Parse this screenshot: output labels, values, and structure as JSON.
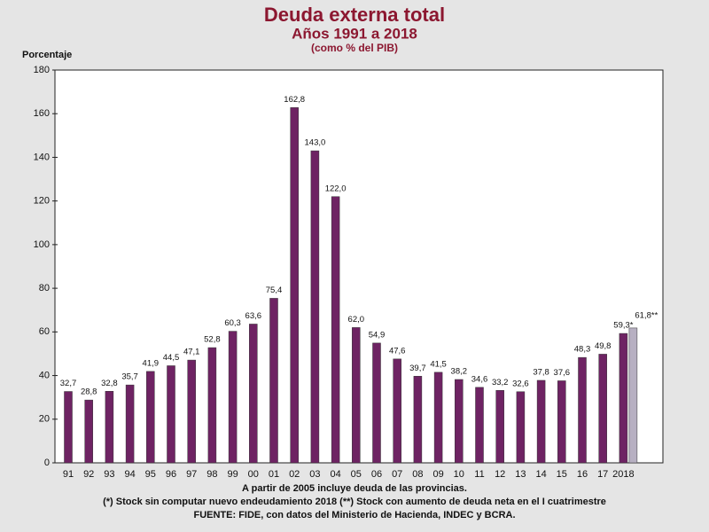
{
  "chart_data": {
    "type": "bar",
    "title": "Deuda externa total",
    "subtitle": "Años 1991 a 2018",
    "subtitle2": "(como % del PIB)",
    "y_label": "Porcentaje",
    "notes": [
      "A partir de 2005 incluye deuda de las provincias.",
      "(*) Stock sin computar nuevo endeudamiento 2018    (**) Stock con aumento de deuda neta en el I cuatrimestre",
      "FUENTE: FIDE, con datos del Ministerio de Hacienda, INDEC y BCRA."
    ],
    "categories": [
      "91",
      "92",
      "93",
      "94",
      "95",
      "96",
      "97",
      "98",
      "99",
      "00",
      "01",
      "02",
      "03",
      "04",
      "05",
      "06",
      "07",
      "08",
      "09",
      "10",
      "11",
      "12",
      "13",
      "14",
      "15",
      "16",
      "17",
      "2018",
      null
    ],
    "values": [
      32.7,
      28.8,
      32.8,
      35.7,
      41.9,
      44.5,
      47.1,
      52.8,
      60.3,
      63.6,
      75.4,
      162.8,
      143.0,
      122.0,
      62.0,
      54.9,
      47.6,
      39.7,
      41.5,
      38.2,
      34.6,
      33.2,
      32.6,
      37.8,
      37.6,
      48.3,
      49.8,
      59.3,
      61.8
    ],
    "value_labels": [
      "32,7",
      "28,8",
      "32,8",
      "35,7",
      "41,9",
      "44,5",
      "47,1",
      "52,8",
      "60,3",
      "63,6",
      "75,4",
      "162,8",
      "143,0",
      "122,0",
      "62,0",
      "54,9",
      "47,6",
      "39,7",
      "41,5",
      "38,2",
      "34,6",
      "33,2",
      "32,6",
      "37,8",
      "37,6",
      "48,3",
      "49,8",
      "59,3*",
      "61,8**"
    ],
    "colors": [
      "#6e2363",
      "#6e2363",
      "#6e2363",
      "#6e2363",
      "#6e2363",
      "#6e2363",
      "#6e2363",
      "#6e2363",
      "#6e2363",
      "#6e2363",
      "#6e2363",
      "#6e2363",
      "#6e2363",
      "#6e2363",
      "#6e2363",
      "#6e2363",
      "#6e2363",
      "#6e2363",
      "#6e2363",
      "#6e2363",
      "#6e2363",
      "#6e2363",
      "#6e2363",
      "#6e2363",
      "#6e2363",
      "#6e2363",
      "#6e2363",
      "#6e2363",
      "#b7b0c2"
    ],
    "ylim": [
      0,
      180
    ],
    "yticks": [
      0,
      20,
      40,
      60,
      80,
      100,
      120,
      140,
      160,
      180
    ]
  }
}
